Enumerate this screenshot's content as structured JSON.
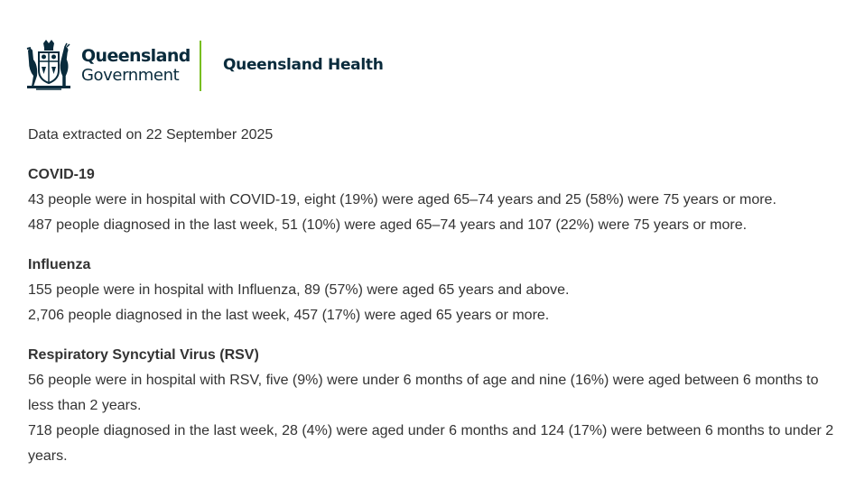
{
  "header": {
    "gov_line1": "Queensland",
    "gov_line2": "Government",
    "department": "Queensland Health",
    "crest_icon": "queensland-coat-of-arms-icon",
    "divider_color": "#78be20",
    "brand_color": "#092b3c"
  },
  "extracted": "Data extracted on 22 September 2025",
  "sections": [
    {
      "title": "COVID-19",
      "lines": [
        "43 people were in hospital with COVID-19, eight (19%) were aged 65–74 years and 25 (58%) were 75 years or more.",
        "487 people diagnosed in the last week, 51 (10%) were aged 65–74 years and 107 (22%) were 75 years or more."
      ]
    },
    {
      "title": "Influenza",
      "lines": [
        "155 people were in hospital with Influenza, 89 (57%) were aged 65 years and above.",
        "2,706 people diagnosed in the last week, 457 (17%) were aged 65 years or more."
      ]
    },
    {
      "title": "Respiratory Syncytial Virus (RSV)",
      "lines": [
        "56 people were in hospital with RSV, five (9%) were under 6 months of age and nine (16%) were aged between 6 months to less than 2 years.",
        "718 people diagnosed in the last week, 28 (4%) were aged under 6 months and 124 (17%) were between 6 months to under 2 years."
      ]
    }
  ]
}
